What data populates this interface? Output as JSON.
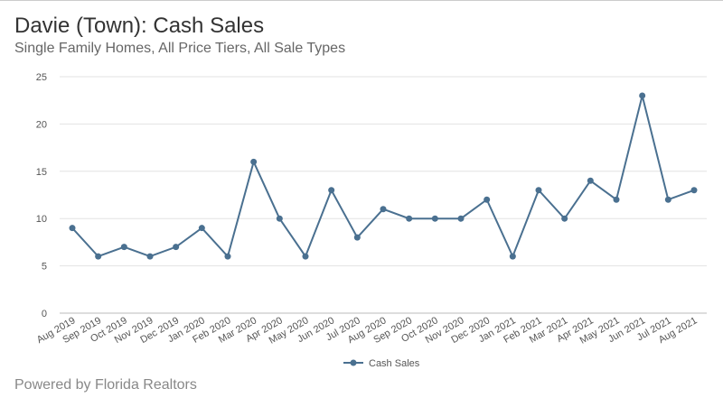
{
  "title": "Davie (Town): Cash Sales",
  "subtitle": "Single Family Homes, All Price Tiers, All Sale Types",
  "footer": "Powered by Florida Realtors",
  "chart_data": {
    "type": "line",
    "title": "Davie (Town): Cash Sales",
    "subtitle": "Single Family Homes, All Price Tiers, All Sale Types",
    "xlabel": "",
    "ylabel": "",
    "ylim": [
      0,
      25
    ],
    "yticks": [
      0,
      5,
      10,
      15,
      20,
      25
    ],
    "grid": true,
    "legend": "bottom-center",
    "categories": [
      "Aug 2019",
      "Sep 2019",
      "Oct 2019",
      "Nov 2019",
      "Dec 2019",
      "Jan 2020",
      "Feb 2020",
      "Mar 2020",
      "Apr 2020",
      "May 2020",
      "Jun 2020",
      "Jul 2020",
      "Aug 2020",
      "Sep 2020",
      "Oct 2020",
      "Nov 2020",
      "Dec 2020",
      "Jan 2021",
      "Feb 2021",
      "Mar 2021",
      "Apr 2021",
      "May 2021",
      "Jun 2021",
      "Jul 2021",
      "Aug 2021"
    ],
    "series": [
      {
        "name": "Cash Sales",
        "color": "#4a7090",
        "values": [
          9,
          6,
          7,
          6,
          7,
          9,
          6,
          16,
          10,
          6,
          13,
          8,
          11,
          10,
          10,
          10,
          12,
          6,
          13,
          10,
          14,
          12,
          23,
          12,
          13
        ]
      }
    ]
  }
}
